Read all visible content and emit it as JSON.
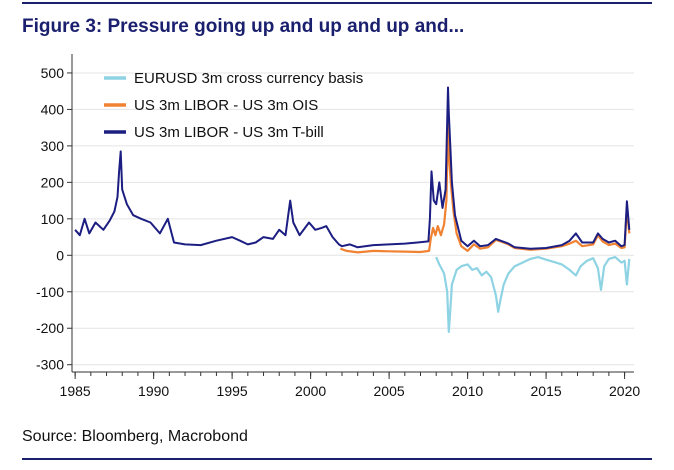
{
  "title": "Figure 3: Pressure going up and up and up and...",
  "source": "Source: Bloomberg, Macrobond",
  "colors": {
    "accent": "#1a1f6e",
    "eurusd": "#8ed3e4",
    "ois": "#f08232",
    "tbill": "#1c1e82"
  },
  "chart_data": {
    "type": "line",
    "title": "Figure 3: Pressure going up and up and up and...",
    "xlabel": "",
    "ylabel": "",
    "xlim": [
      1984.8,
      2020.6
    ],
    "ylim": [
      -320,
      530
    ],
    "x_ticks": [
      1985,
      1990,
      1995,
      2000,
      2005,
      2010,
      2015,
      2020
    ],
    "y_ticks": [
      500,
      400,
      300,
      200,
      100,
      0,
      -100,
      -200,
      -300
    ],
    "grid": true,
    "legend": "top-left",
    "series": [
      {
        "name": "EURUSD 3m cross currency basis",
        "color": "#8ed3e4",
        "points": [
          [
            2008.0,
            -5
          ],
          [
            2008.2,
            -25
          ],
          [
            2008.5,
            -50
          ],
          [
            2008.7,
            -100
          ],
          [
            2008.8,
            -210
          ],
          [
            2008.9,
            -150
          ],
          [
            2009.0,
            -80
          ],
          [
            2009.3,
            -40
          ],
          [
            2009.6,
            -30
          ],
          [
            2010.0,
            -25
          ],
          [
            2010.3,
            -40
          ],
          [
            2010.6,
            -35
          ],
          [
            2010.9,
            -55
          ],
          [
            2011.2,
            -45
          ],
          [
            2011.5,
            -60
          ],
          [
            2011.8,
            -110
          ],
          [
            2011.95,
            -155
          ],
          [
            2012.1,
            -120
          ],
          [
            2012.3,
            -80
          ],
          [
            2012.6,
            -50
          ],
          [
            2013.0,
            -30
          ],
          [
            2013.5,
            -20
          ],
          [
            2014.0,
            -10
          ],
          [
            2014.5,
            -5
          ],
          [
            2015.0,
            -12
          ],
          [
            2015.5,
            -18
          ],
          [
            2016.0,
            -25
          ],
          [
            2016.5,
            -40
          ],
          [
            2016.9,
            -55
          ],
          [
            2017.2,
            -30
          ],
          [
            2017.6,
            -15
          ],
          [
            2018.0,
            -8
          ],
          [
            2018.3,
            -35
          ],
          [
            2018.5,
            -95
          ],
          [
            2018.7,
            -30
          ],
          [
            2019.0,
            -10
          ],
          [
            2019.4,
            -5
          ],
          [
            2019.8,
            -20
          ],
          [
            2020.0,
            -15
          ],
          [
            2020.15,
            -80
          ],
          [
            2020.3,
            -10
          ]
        ]
      },
      {
        "name": "US 3m LIBOR - US 3m OIS",
        "color": "#f08232",
        "points": [
          [
            2001.9,
            18
          ],
          [
            2002.3,
            12
          ],
          [
            2003.0,
            8
          ],
          [
            2004.0,
            12
          ],
          [
            2005.0,
            11
          ],
          [
            2006.0,
            10
          ],
          [
            2007.0,
            9
          ],
          [
            2007.55,
            12
          ],
          [
            2007.65,
            45
          ],
          [
            2007.8,
            75
          ],
          [
            2007.95,
            55
          ],
          [
            2008.1,
            80
          ],
          [
            2008.3,
            55
          ],
          [
            2008.5,
            85
          ],
          [
            2008.65,
            150
          ],
          [
            2008.75,
            364
          ],
          [
            2008.8,
            330
          ],
          [
            2008.85,
            250
          ],
          [
            2008.95,
            190
          ],
          [
            2009.1,
            120
          ],
          [
            2009.3,
            60
          ],
          [
            2009.6,
            25
          ],
          [
            2010.0,
            12
          ],
          [
            2010.4,
            30
          ],
          [
            2010.8,
            18
          ],
          [
            2011.3,
            22
          ],
          [
            2011.8,
            42
          ],
          [
            2012.1,
            38
          ],
          [
            2012.6,
            30
          ],
          [
            2013.0,
            20
          ],
          [
            2014.0,
            15
          ],
          [
            2015.0,
            18
          ],
          [
            2016.0,
            25
          ],
          [
            2016.5,
            32
          ],
          [
            2016.9,
            40
          ],
          [
            2017.3,
            25
          ],
          [
            2018.0,
            30
          ],
          [
            2018.3,
            55
          ],
          [
            2018.6,
            38
          ],
          [
            2019.0,
            28
          ],
          [
            2019.4,
            32
          ],
          [
            2019.8,
            20
          ],
          [
            2020.0,
            22
          ],
          [
            2020.15,
            130
          ],
          [
            2020.3,
            60
          ]
        ]
      },
      {
        "name": "US 3m LIBOR - US 3m T-bill",
        "color": "#1c1e82",
        "points": [
          [
            1985.0,
            70
          ],
          [
            1985.3,
            55
          ],
          [
            1985.6,
            100
          ],
          [
            1985.9,
            60
          ],
          [
            1986.3,
            90
          ],
          [
            1986.8,
            70
          ],
          [
            1987.2,
            95
          ],
          [
            1987.5,
            120
          ],
          [
            1987.7,
            160
          ],
          [
            1987.8,
            230
          ],
          [
            1987.9,
            285
          ],
          [
            1988.0,
            180
          ],
          [
            1988.3,
            140
          ],
          [
            1988.7,
            110
          ],
          [
            1989.2,
            100
          ],
          [
            1989.8,
            90
          ],
          [
            1990.4,
            60
          ],
          [
            1990.9,
            100
          ],
          [
            1991.3,
            35
          ],
          [
            1992.0,
            30
          ],
          [
            1993.0,
            28
          ],
          [
            1994.0,
            40
          ],
          [
            1995.0,
            50
          ],
          [
            1995.5,
            40
          ],
          [
            1996.0,
            30
          ],
          [
            1996.5,
            35
          ],
          [
            1997.0,
            50
          ],
          [
            1997.6,
            45
          ],
          [
            1998.0,
            70
          ],
          [
            1998.4,
            55
          ],
          [
            1998.7,
            150
          ],
          [
            1998.9,
            90
          ],
          [
            1999.3,
            55
          ],
          [
            1999.9,
            90
          ],
          [
            2000.3,
            70
          ],
          [
            2000.7,
            75
          ],
          [
            2001.0,
            80
          ],
          [
            2001.4,
            50
          ],
          [
            2001.8,
            30
          ],
          [
            2002.0,
            25
          ],
          [
            2002.5,
            30
          ],
          [
            2003.0,
            22
          ],
          [
            2004.0,
            28
          ],
          [
            2005.0,
            30
          ],
          [
            2006.0,
            32
          ],
          [
            2006.8,
            35
          ],
          [
            2007.5,
            38
          ],
          [
            2007.6,
            100
          ],
          [
            2007.7,
            230
          ],
          [
            2007.85,
            150
          ],
          [
            2008.0,
            140
          ],
          [
            2008.2,
            200
          ],
          [
            2008.4,
            130
          ],
          [
            2008.6,
            180
          ],
          [
            2008.75,
            460
          ],
          [
            2008.8,
            390
          ],
          [
            2008.9,
            300
          ],
          [
            2009.0,
            200
          ],
          [
            2009.2,
            110
          ],
          [
            2009.6,
            40
          ],
          [
            2010.0,
            25
          ],
          [
            2010.4,
            40
          ],
          [
            2010.8,
            25
          ],
          [
            2011.3,
            28
          ],
          [
            2011.8,
            45
          ],
          [
            2012.1,
            40
          ],
          [
            2012.6,
            32
          ],
          [
            2013.0,
            22
          ],
          [
            2014.0,
            18
          ],
          [
            2015.0,
            20
          ],
          [
            2016.0,
            28
          ],
          [
            2016.5,
            40
          ],
          [
            2016.9,
            60
          ],
          [
            2017.3,
            35
          ],
          [
            2018.0,
            35
          ],
          [
            2018.3,
            60
          ],
          [
            2018.6,
            45
          ],
          [
            2019.0,
            35
          ],
          [
            2019.4,
            40
          ],
          [
            2019.8,
            25
          ],
          [
            2020.0,
            28
          ],
          [
            2020.15,
            148
          ],
          [
            2020.3,
            70
          ]
        ]
      }
    ]
  }
}
